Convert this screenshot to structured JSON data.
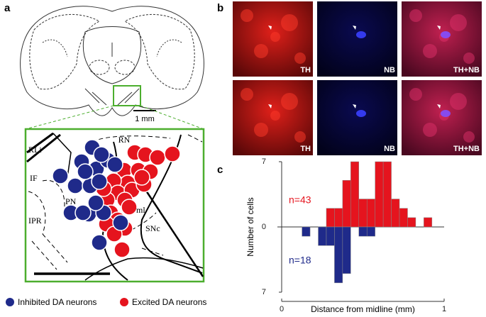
{
  "panel_labels": [
    "a",
    "b",
    "c"
  ],
  "panel_a": {
    "scale_bar": "1 mm",
    "regions": [
      "RN",
      "RLi",
      "IF",
      "PN",
      "IPR",
      "ml",
      "SNc"
    ],
    "legend": [
      "Inhibited DA neurons",
      "Excited DA neurons"
    ]
  },
  "panel_b": {
    "rows": [
      [
        "TH",
        "NB",
        "TH+NB"
      ],
      [
        "TH",
        "NB",
        "TH+NB"
      ]
    ]
  },
  "chart_data": {
    "type": "histogram",
    "xlabel": "Distance from midline (mm)",
    "ylabel": "Number of cells",
    "bins": [
      0.125,
      0.175,
      0.225,
      0.275,
      0.325,
      0.375,
      0.425,
      0.475,
      0.525,
      0.575,
      0.625,
      0.675,
      0.725,
      0.775,
      0.825,
      0.875,
      0.925,
      0.975
    ],
    "series": [
      {
        "color": "#e5141e",
        "values": [
          0,
          0,
          0,
          2,
          2,
          5,
          7,
          3,
          3,
          7,
          7,
          3,
          2,
          1,
          0,
          1,
          0
        ]
      },
      {
        "color": "#1f2a8a",
        "values": [
          -1,
          0,
          -2,
          -2,
          -6,
          -5,
          0,
          -1,
          -1,
          0,
          0,
          0,
          0,
          0,
          0,
          0,
          0
        ]
      }
    ],
    "annotations": [
      "n=43",
      "n=18"
    ],
    "xlim": [
      0,
      1
    ],
    "xticks": [
      0,
      1
    ],
    "ylim": [
      -7,
      7
    ],
    "yticks": [
      {
        "value": -7,
        "label": "7"
      },
      0,
      7
    ]
  }
}
